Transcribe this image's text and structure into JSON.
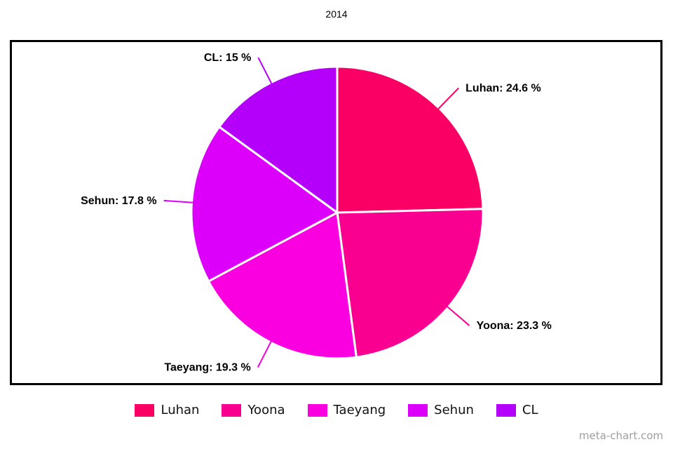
{
  "title": "2014",
  "watermark": "meta-chart.com",
  "chart_data": {
    "type": "pie",
    "title": "2014",
    "start_angle_deg": 0,
    "direction": "clockwise",
    "total": 100,
    "slice_border_color": "#ffffff",
    "legend_position": "bottom",
    "series": [
      {
        "label": "Luhan",
        "value": 24.6,
        "display": "Luhan: 24.6 %",
        "color": "#FA0064"
      },
      {
        "label": "Yoona",
        "value": 23.3,
        "display": "Yoona: 23.3 %",
        "color": "#FA0090"
      },
      {
        "label": "Taeyang",
        "value": 19.3,
        "display": "Taeyang: 19.3 %",
        "color": "#FA00E1"
      },
      {
        "label": "Sehun",
        "value": 17.8,
        "display": "Sehun: 17.8 %",
        "color": "#DC00FA"
      },
      {
        "label": "CL",
        "value": 15,
        "display": "CL: 15 %",
        "color": "#B400FA"
      }
    ]
  }
}
